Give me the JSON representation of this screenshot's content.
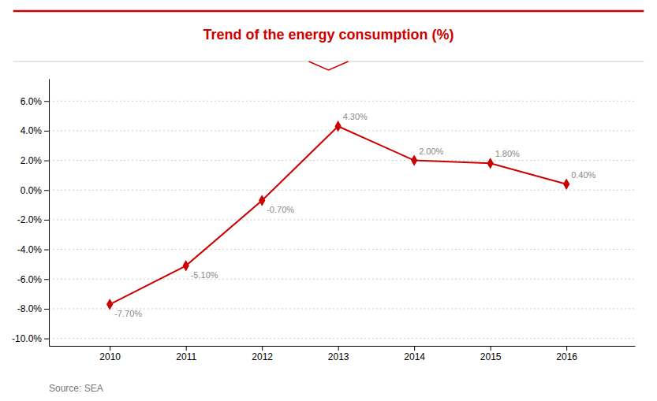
{
  "chart_data": {
    "type": "line",
    "title": "Trend of the energy consumption (%)",
    "x": [
      2010,
      2011,
      2012,
      2013,
      2014,
      2015,
      2016
    ],
    "values": [
      -7.7,
      -5.1,
      -0.7,
      4.3,
      2.0,
      1.8,
      0.4
    ],
    "value_labels": [
      "-7.70%",
      "-5.10%",
      "-0.70%",
      "4.30%",
      "2.00%",
      "1.80%",
      "0.40%"
    ],
    "data_labels": true,
    "color": "#cc0000",
    "marker": "diamond",
    "xlim": [
      2009.2,
      2016.9
    ],
    "xticks": [
      2010,
      2011,
      2012,
      2013,
      2014,
      2015,
      2016
    ],
    "ylim": [
      -10.5,
      7.5
    ],
    "yticks": [
      {
        "value": -10.0,
        "label": "-10.0%"
      },
      {
        "value": -8.0,
        "label": "-8.0%"
      },
      {
        "value": -6.0,
        "label": "-6.0%"
      },
      {
        "value": -4.0,
        "label": "-4.0%"
      },
      {
        "value": -2.0,
        "label": "-2.0%"
      },
      {
        "value": 0.0,
        "label": "0.0%"
      },
      {
        "value": 2.0,
        "label": "2.0%"
      },
      {
        "value": 4.0,
        "label": "4.0%"
      },
      {
        "value": 6.0,
        "label": "6.0%"
      }
    ],
    "grid": true,
    "annotations": [
      "Source: SEA"
    ]
  }
}
